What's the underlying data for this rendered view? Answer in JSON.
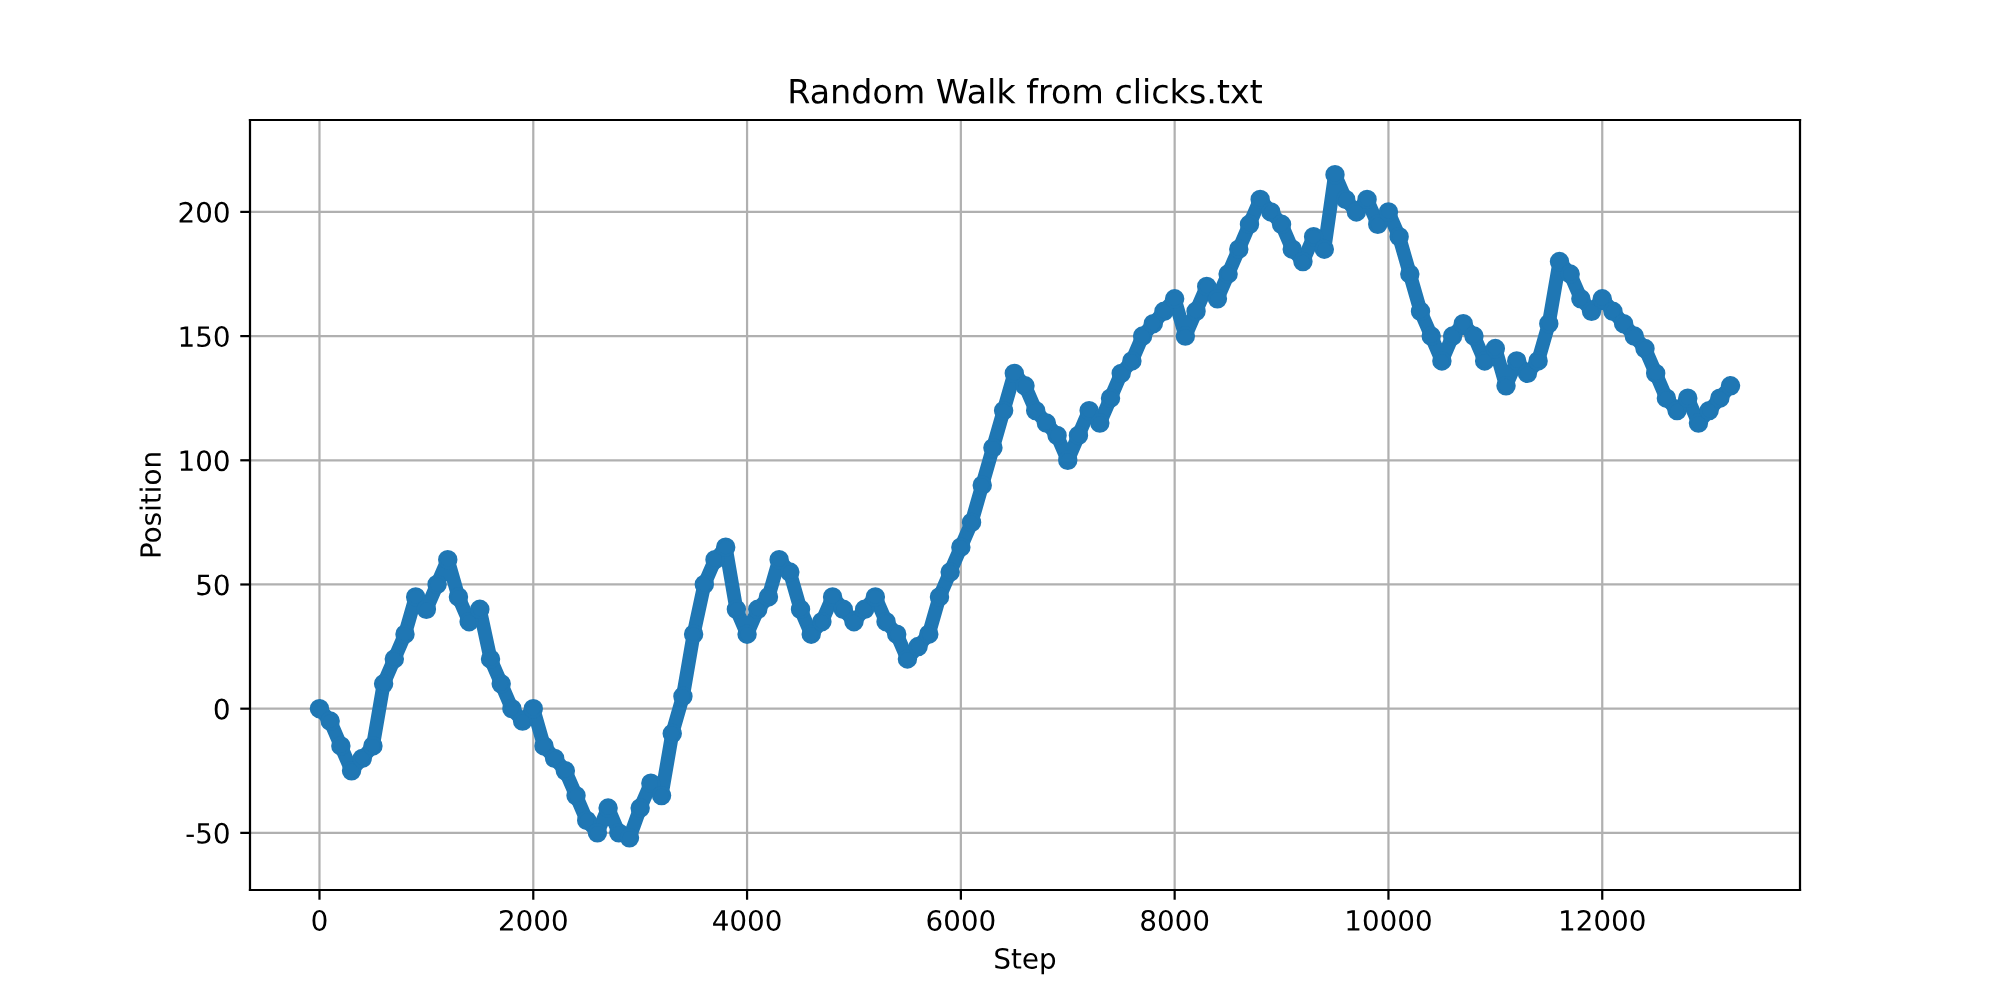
{
  "chart_data": {
    "type": "line",
    "title": "Random Walk from clicks.txt",
    "xlabel": "Step",
    "ylabel": "Position",
    "marker": "circle",
    "grid": true,
    "xlim": [
      -650,
      13850
    ],
    "ylim": [
      -73,
      237
    ],
    "xticks": [
      0,
      2000,
      4000,
      6000,
      8000,
      10000,
      12000
    ],
    "yticks": [
      -50,
      0,
      50,
      100,
      150,
      200
    ],
    "series": [
      {
        "color": "#1f77b4",
        "x": [
          0,
          100,
          200,
          300,
          400,
          500,
          600,
          700,
          800,
          900,
          1000,
          1100,
          1200,
          1300,
          1400,
          1500,
          1600,
          1700,
          1800,
          1900,
          2000,
          2100,
          2200,
          2300,
          2400,
          2500,
          2600,
          2700,
          2800,
          2900,
          3000,
          3100,
          3200,
          3300,
          3400,
          3500,
          3600,
          3700,
          3800,
          3900,
          4000,
          4100,
          4200,
          4300,
          4400,
          4500,
          4600,
          4700,
          4800,
          4900,
          5000,
          5100,
          5200,
          5300,
          5400,
          5500,
          5600,
          5700,
          5800,
          5900,
          6000,
          6100,
          6200,
          6300,
          6400,
          6500,
          6600,
          6700,
          6800,
          6900,
          7000,
          7100,
          7200,
          7300,
          7400,
          7500,
          7600,
          7700,
          7800,
          7900,
          8000,
          8100,
          8200,
          8300,
          8400,
          8500,
          8600,
          8700,
          8800,
          8900,
          9000,
          9100,
          9200,
          9300,
          9400,
          9500,
          9600,
          9700,
          9800,
          9900,
          10000,
          10100,
          10200,
          10300,
          10400,
          10500,
          10600,
          10700,
          10800,
          10900,
          11000,
          11100,
          11200,
          11300,
          11400,
          11500,
          11600,
          11700,
          11800,
          11900,
          12000,
          12100,
          12200,
          12300,
          12400,
          12500,
          12600,
          12700,
          12800,
          12900,
          13000,
          13100,
          13200
        ],
        "values": [
          0,
          -5,
          -15,
          -25,
          -20,
          -15,
          10,
          20,
          30,
          45,
          40,
          50,
          60,
          45,
          35,
          40,
          20,
          10,
          0,
          -5,
          0,
          -15,
          -20,
          -25,
          -35,
          -45,
          -50,
          -40,
          -50,
          -52,
          -40,
          -30,
          -35,
          -10,
          5,
          30,
          50,
          60,
          65,
          40,
          30,
          40,
          45,
          60,
          55,
          40,
          30,
          35,
          45,
          40,
          35,
          40,
          45,
          35,
          30,
          20,
          25,
          30,
          45,
          55,
          65,
          75,
          90,
          105,
          120,
          135,
          130,
          120,
          115,
          110,
          100,
          110,
          120,
          115,
          125,
          135,
          140,
          150,
          155,
          160,
          165,
          150,
          160,
          170,
          165,
          175,
          185,
          195,
          205,
          200,
          195,
          185,
          180,
          190,
          185,
          215,
          205,
          200,
          205,
          195,
          200,
          190,
          175,
          160,
          150,
          140,
          150,
          155,
          150,
          140,
          145,
          130,
          140,
          135,
          140,
          155,
          180,
          175,
          165,
          160,
          165,
          160,
          155,
          150,
          145,
          135,
          125,
          120,
          125,
          115,
          120,
          125,
          130
        ]
      }
    ]
  }
}
